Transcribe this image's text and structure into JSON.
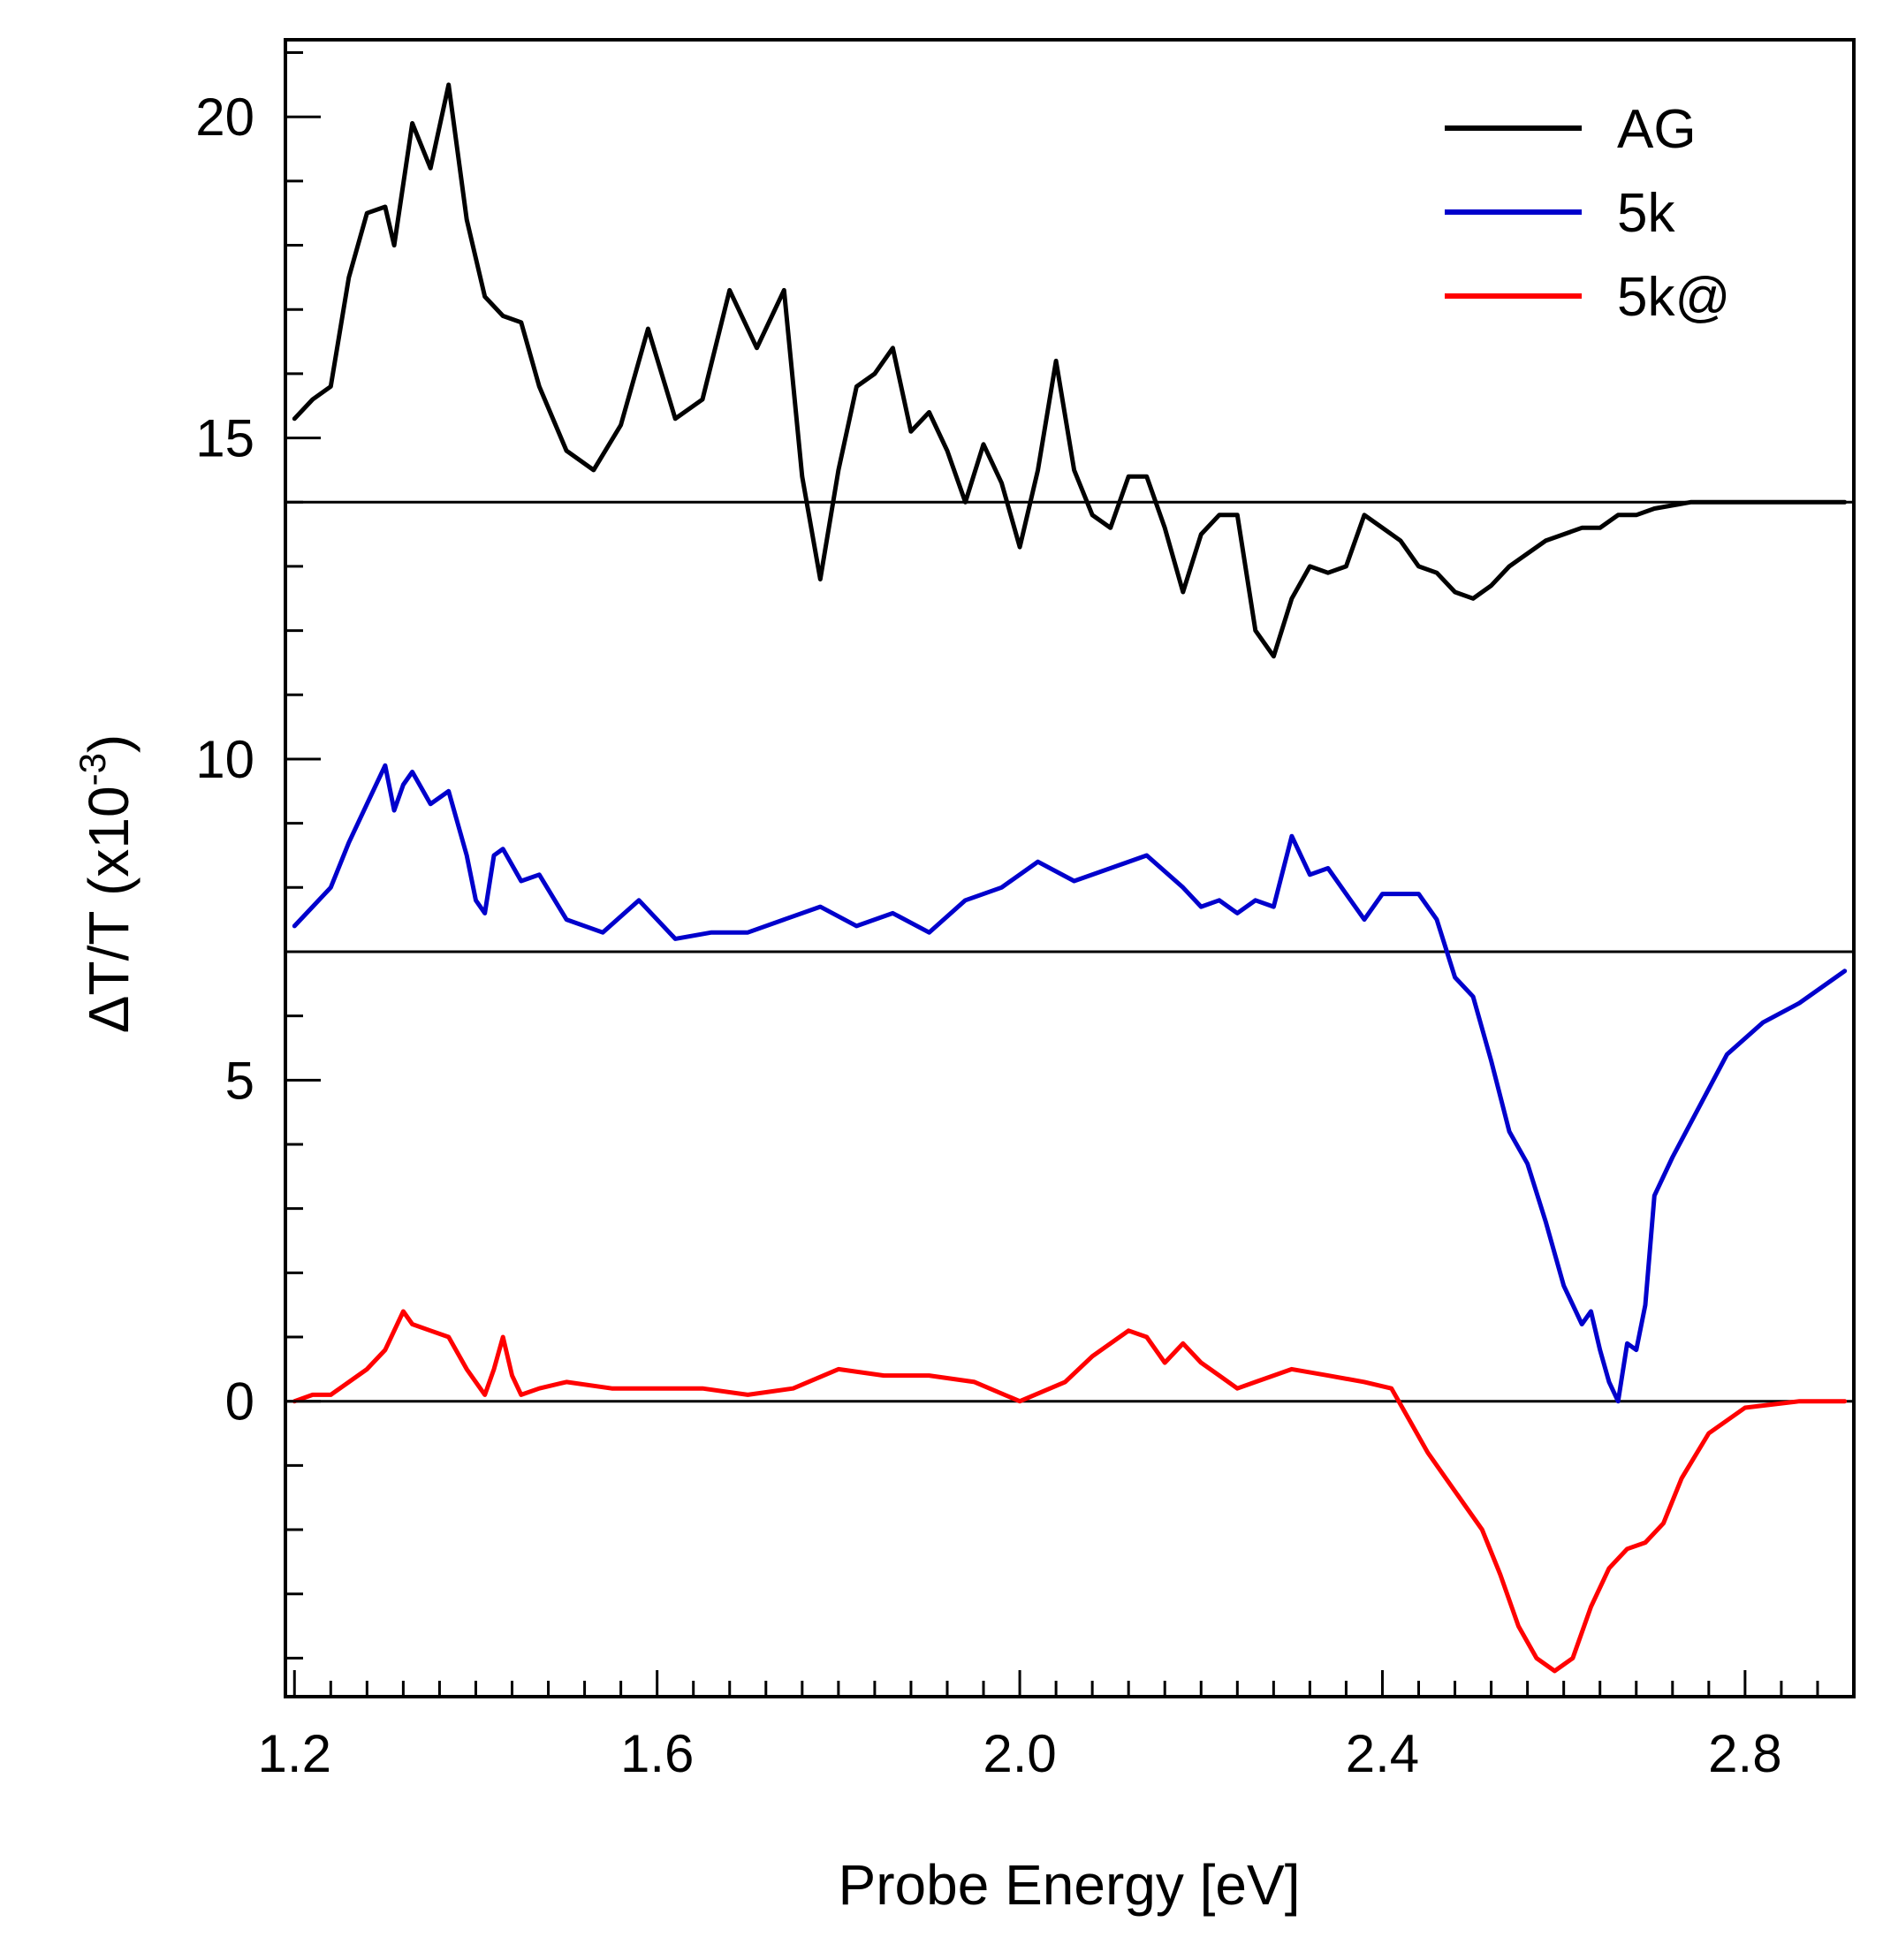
{
  "chart_data": {
    "type": "line",
    "title": "",
    "xlabel": "Probe Energy [eV]",
    "ylabel_main": "ΔT/T (x10",
    "ylabel_exp": "-3",
    "ylabel_close": ")",
    "xlim": [
      1.19,
      2.92
    ],
    "ylim": [
      -4.6,
      21.2
    ],
    "xticks": [
      1.2,
      1.6,
      2.0,
      2.4,
      2.8
    ],
    "xtick_labels": [
      "1.2",
      "1.6",
      "2.0",
      "2.4",
      "2.8"
    ],
    "xminor_step": 0.04,
    "yticks": [
      0,
      5,
      10,
      15,
      20
    ],
    "ytick_labels": [
      "0",
      "5",
      "10",
      "15",
      "20"
    ],
    "yminor_step": 1,
    "baselines": [
      {
        "name": "AG",
        "y": 14
      },
      {
        "name": "5k",
        "y": 7
      },
      {
        "name": "5k@",
        "y": 0
      }
    ],
    "legend_position": "top-right",
    "series": [
      {
        "name": "AG",
        "color": "#000000",
        "x": [
          1.2,
          1.22,
          1.24,
          1.26,
          1.28,
          1.3,
          1.31,
          1.33,
          1.35,
          1.37,
          1.39,
          1.41,
          1.43,
          1.45,
          1.47,
          1.5,
          1.53,
          1.56,
          1.59,
          1.62,
          1.65,
          1.68,
          1.71,
          1.74,
          1.76,
          1.78,
          1.8,
          1.82,
          1.84,
          1.86,
          1.88,
          1.9,
          1.92,
          1.94,
          1.96,
          1.98,
          2.0,
          2.02,
          2.04,
          2.06,
          2.08,
          2.1,
          2.12,
          2.14,
          2.16,
          2.18,
          2.2,
          2.22,
          2.24,
          2.26,
          2.28,
          2.3,
          2.32,
          2.34,
          2.36,
          2.38,
          2.4,
          2.42,
          2.44,
          2.46,
          2.48,
          2.5,
          2.52,
          2.54,
          2.56,
          2.58,
          2.6,
          2.62,
          2.64,
          2.66,
          2.68,
          2.7,
          2.74,
          2.8,
          2.86,
          2.91
        ],
        "y": [
          15.3,
          15.6,
          15.8,
          17.5,
          18.5,
          18.6,
          18.0,
          19.9,
          19.2,
          20.5,
          18.4,
          17.2,
          16.9,
          16.8,
          15.8,
          14.8,
          14.5,
          15.2,
          16.7,
          15.3,
          15.6,
          17.3,
          16.4,
          17.3,
          14.4,
          12.8,
          14.5,
          15.8,
          16.0,
          16.4,
          15.1,
          15.4,
          14.8,
          14.0,
          14.9,
          14.3,
          13.3,
          14.5,
          16.2,
          14.5,
          13.8,
          13.6,
          14.4,
          14.4,
          13.6,
          12.6,
          13.5,
          13.8,
          13.8,
          12.0,
          11.6,
          12.5,
          13.0,
          12.9,
          13.0,
          13.8,
          13.6,
          13.4,
          13.0,
          12.9,
          12.6,
          12.5,
          12.7,
          13.0,
          13.2,
          13.4,
          13.5,
          13.6,
          13.6,
          13.8,
          13.8,
          13.9,
          14.0,
          14.0,
          14.0,
          14.0
        ]
      },
      {
        "name": "5k",
        "color": "#0000cc",
        "x": [
          1.2,
          1.22,
          1.24,
          1.26,
          1.28,
          1.3,
          1.31,
          1.32,
          1.33,
          1.35,
          1.37,
          1.39,
          1.4,
          1.41,
          1.42,
          1.43,
          1.45,
          1.47,
          1.5,
          1.54,
          1.58,
          1.62,
          1.66,
          1.7,
          1.74,
          1.78,
          1.82,
          1.86,
          1.9,
          1.94,
          1.98,
          2.02,
          2.06,
          2.1,
          2.14,
          2.18,
          2.2,
          2.22,
          2.24,
          2.26,
          2.28,
          2.3,
          2.32,
          2.34,
          2.36,
          2.38,
          2.4,
          2.42,
          2.44,
          2.46,
          2.48,
          2.5,
          2.52,
          2.54,
          2.56,
          2.58,
          2.6,
          2.62,
          2.63,
          2.64,
          2.65,
          2.66,
          2.67,
          2.68,
          2.69,
          2.7,
          2.72,
          2.75,
          2.78,
          2.82,
          2.86,
          2.91
        ],
        "y": [
          7.4,
          7.7,
          8.0,
          8.7,
          9.3,
          9.9,
          9.2,
          9.6,
          9.8,
          9.3,
          9.5,
          8.5,
          7.8,
          7.6,
          8.5,
          8.6,
          8.1,
          8.2,
          7.5,
          7.3,
          7.8,
          7.2,
          7.3,
          7.3,
          7.5,
          7.7,
          7.4,
          7.6,
          7.3,
          7.8,
          8.0,
          8.4,
          8.1,
          8.3,
          8.5,
          8.0,
          7.7,
          7.8,
          7.6,
          7.8,
          7.7,
          8.8,
          8.2,
          8.3,
          7.9,
          7.5,
          7.9,
          7.9,
          7.9,
          7.5,
          6.6,
          6.3,
          5.3,
          4.2,
          3.7,
          2.8,
          1.8,
          1.2,
          1.4,
          0.8,
          0.3,
          0.0,
          0.9,
          0.8,
          1.5,
          3.2,
          3.8,
          4.6,
          5.4,
          5.9,
          6.2,
          6.7
        ]
      },
      {
        "name": "5k@",
        "color": "#ff0000",
        "x": [
          1.2,
          1.22,
          1.24,
          1.26,
          1.28,
          1.3,
          1.32,
          1.33,
          1.35,
          1.37,
          1.39,
          1.41,
          1.42,
          1.43,
          1.44,
          1.45,
          1.47,
          1.5,
          1.55,
          1.6,
          1.65,
          1.7,
          1.75,
          1.8,
          1.85,
          1.9,
          1.95,
          2.0,
          2.05,
          2.08,
          2.1,
          2.12,
          2.14,
          2.16,
          2.18,
          2.2,
          2.22,
          2.24,
          2.26,
          2.28,
          2.3,
          2.34,
          2.38,
          2.41,
          2.43,
          2.45,
          2.47,
          2.49,
          2.51,
          2.53,
          2.55,
          2.57,
          2.59,
          2.61,
          2.63,
          2.65,
          2.67,
          2.69,
          2.71,
          2.73,
          2.76,
          2.8,
          2.86,
          2.91
        ],
        "y": [
          0.0,
          0.1,
          0.1,
          0.3,
          0.5,
          0.8,
          1.4,
          1.2,
          1.1,
          1.0,
          0.5,
          0.1,
          0.5,
          1.0,
          0.4,
          0.1,
          0.2,
          0.3,
          0.2,
          0.2,
          0.2,
          0.1,
          0.2,
          0.5,
          0.4,
          0.4,
          0.3,
          0.0,
          0.3,
          0.7,
          0.9,
          1.1,
          1.0,
          0.6,
          0.9,
          0.6,
          0.4,
          0.2,
          0.3,
          0.4,
          0.5,
          0.4,
          0.3,
          0.2,
          -0.3,
          -0.8,
          -1.2,
          -1.6,
          -2.0,
          -2.7,
          -3.5,
          -4.0,
          -4.2,
          -4.0,
          -3.2,
          -2.6,
          -2.3,
          -2.2,
          -1.9,
          -1.2,
          -0.5,
          -0.1,
          0.0,
          0.0
        ]
      }
    ]
  }
}
